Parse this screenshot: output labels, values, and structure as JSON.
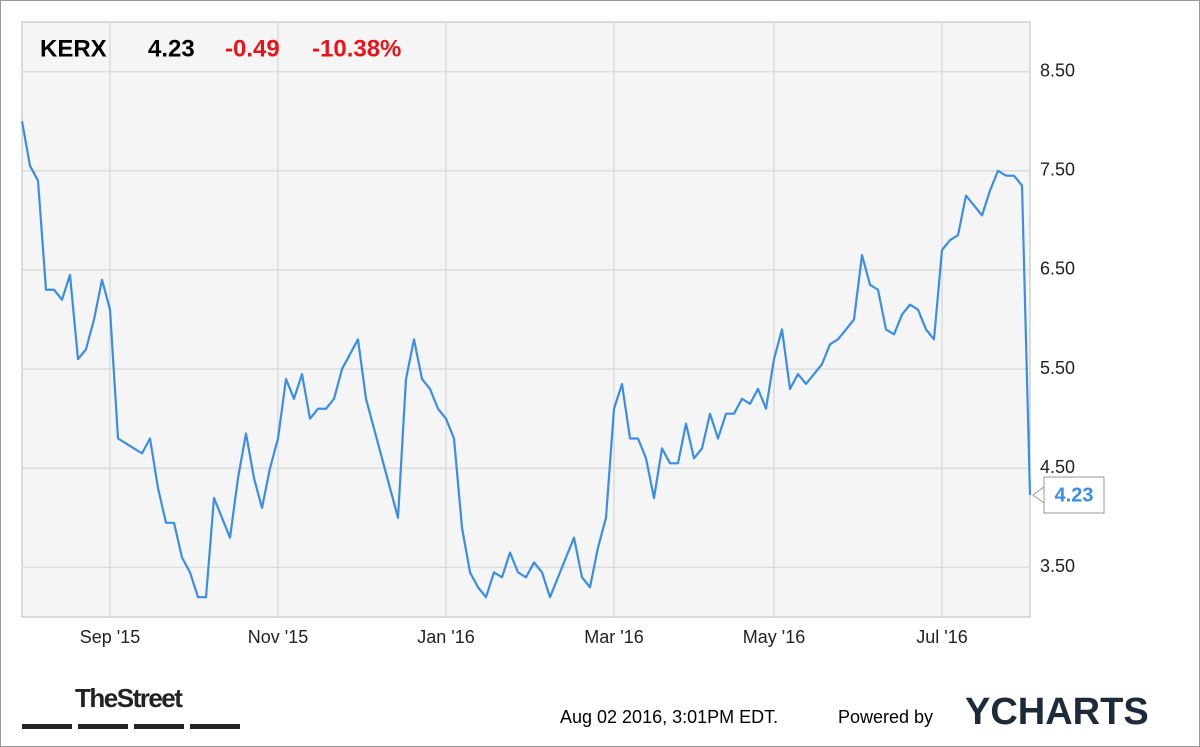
{
  "chart_data": {
    "type": "line",
    "header": {
      "ticker": "KERX",
      "price": "4.23",
      "change": "-0.49",
      "change_percent": "-10.38%"
    },
    "series": [
      {
        "name": "KERX",
        "color": "#3a8ee6",
        "values": [
          8.0,
          7.55,
          7.4,
          6.3,
          6.3,
          6.2,
          6.45,
          5.6,
          5.7,
          6.0,
          6.4,
          6.1,
          4.8,
          4.75,
          4.7,
          4.65,
          4.8,
          4.3,
          3.95,
          3.95,
          3.6,
          3.45,
          3.2,
          3.2,
          4.2,
          4.0,
          3.8,
          4.4,
          4.85,
          4.4,
          4.1,
          4.5,
          4.8,
          5.4,
          5.2,
          5.45,
          5.0,
          5.1,
          5.1,
          5.2,
          5.5,
          5.65,
          5.8,
          5.2,
          4.9,
          4.6,
          4.3,
          4.0,
          5.4,
          5.8,
          5.4,
          5.3,
          5.1,
          5.0,
          4.8,
          3.9,
          3.45,
          3.3,
          3.2,
          3.45,
          3.4,
          3.65,
          3.45,
          3.4,
          3.55,
          3.45,
          3.2,
          3.4,
          3.6,
          3.8,
          3.4,
          3.3,
          3.7,
          4.0,
          5.1,
          5.35,
          4.8,
          4.8,
          4.6,
          4.2,
          4.7,
          4.55,
          4.55,
          4.95,
          4.6,
          4.7,
          5.05,
          4.8,
          5.05,
          5.05,
          5.2,
          5.15,
          5.3,
          5.1,
          5.6,
          5.9,
          5.3,
          5.45,
          5.35,
          5.45,
          5.55,
          5.75,
          5.8,
          5.9,
          6.0,
          6.65,
          6.35,
          6.3,
          5.9,
          5.85,
          6.05,
          6.15,
          6.1,
          5.9,
          5.8,
          6.7,
          6.8,
          6.85,
          7.25,
          7.15,
          7.05,
          7.3,
          7.5,
          7.45,
          7.45,
          7.35,
          4.23
        ]
      }
    ],
    "xlim": [
      0,
      126
    ],
    "xticks": [
      {
        "value": 11,
        "label": "Sep '15"
      },
      {
        "value": 32,
        "label": "Nov '15"
      },
      {
        "value": 53,
        "label": "Jan '16"
      },
      {
        "value": 74,
        "label": "Mar '16"
      },
      {
        "value": 94,
        "label": "May '16"
      },
      {
        "value": 115,
        "label": "Jul '16"
      }
    ],
    "ylim": [
      3.0,
      9.0
    ],
    "yticks": [
      {
        "value": 3.5,
        "label": "3.50"
      },
      {
        "value": 4.5,
        "label": "4.50"
      },
      {
        "value": 5.5,
        "label": "5.50"
      },
      {
        "value": 6.5,
        "label": "6.50"
      },
      {
        "value": 7.5,
        "label": "7.50"
      },
      {
        "value": 8.5,
        "label": "8.50"
      }
    ],
    "grid": true,
    "footer": {
      "source": "TheStreet",
      "timestamp": "Aug 02 2016, 3:01PM EDT.",
      "powered_by": "Powered by",
      "brand": "YCHARTS"
    }
  }
}
